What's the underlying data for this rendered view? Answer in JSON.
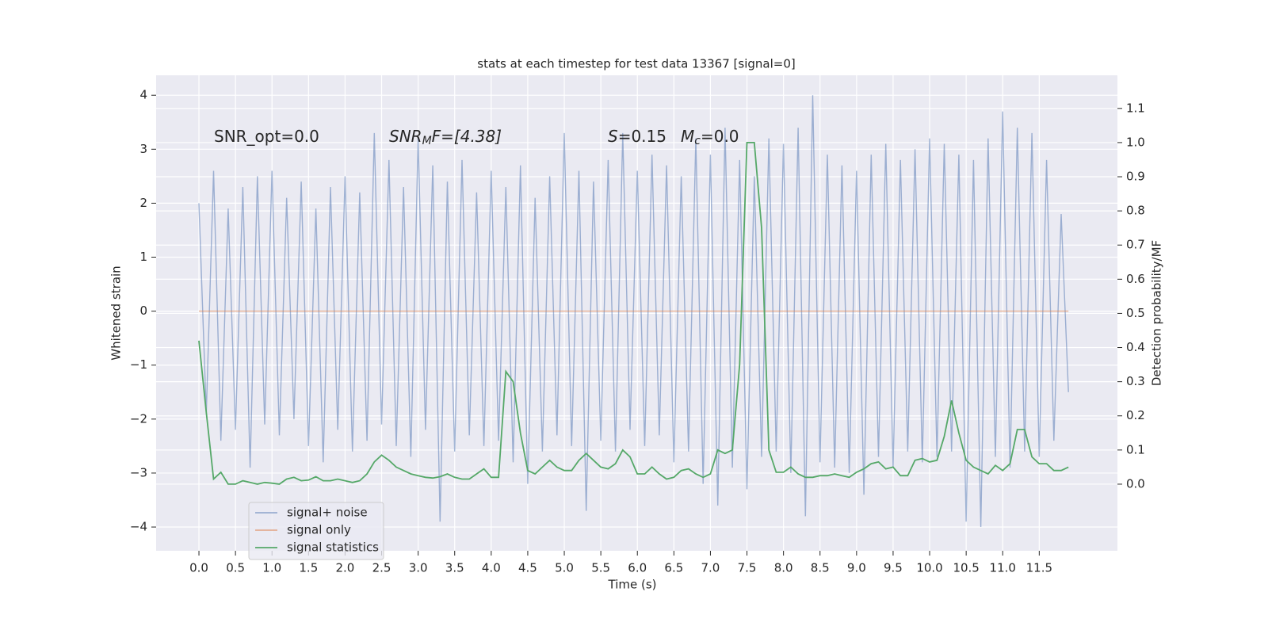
{
  "chart_data": {
    "type": "line",
    "title": "stats at each timestep for test data 13367 [signal=0]",
    "xlabel": "Time (s)",
    "ylabel": "Whitened strain",
    "y2label": "Detection probability/MF",
    "annotations": [
      {
        "text": "SNR_opt=0.0"
      },
      {
        "text": "SNR",
        "sub": "M",
        "tail": "F=[4.38]",
        "italic": true
      },
      {
        "text": "S",
        "tail": "=0.15",
        "italic": true
      },
      {
        "text": "M",
        "sub": "c",
        "tail": "=0.0",
        "italic": true
      }
    ],
    "x": [
      0.0,
      0.1,
      0.2,
      0.3,
      0.4,
      0.5,
      0.6,
      0.7,
      0.8,
      0.9,
      1.0,
      1.1,
      1.2,
      1.3,
      1.4,
      1.5,
      1.6,
      1.7,
      1.8,
      1.9,
      2.0,
      2.1,
      2.2,
      2.3,
      2.4,
      2.5,
      2.6,
      2.7,
      2.8,
      2.9,
      3.0,
      3.1,
      3.2,
      3.3,
      3.4,
      3.5,
      3.6,
      3.7,
      3.8,
      3.9,
      4.0,
      4.1,
      4.2,
      4.3,
      4.4,
      4.5,
      4.6,
      4.7,
      4.8,
      4.9,
      5.0,
      5.1,
      5.2,
      5.3,
      5.4,
      5.5,
      5.6,
      5.7,
      5.8,
      5.9,
      6.0,
      6.1,
      6.2,
      6.3,
      6.4,
      6.5,
      6.6,
      6.7,
      6.8,
      6.9,
      7.0,
      7.1,
      7.2,
      7.3,
      7.4,
      7.5,
      7.6,
      7.7,
      7.8,
      7.9,
      8.0,
      8.1,
      8.2,
      8.3,
      8.4,
      8.5,
      8.6,
      8.7,
      8.8,
      8.9,
      9.0,
      9.1,
      9.2,
      9.3,
      9.4,
      9.5,
      9.6,
      9.7,
      9.8,
      9.9,
      10.0,
      10.1,
      10.2,
      10.3,
      10.4,
      10.5,
      10.6,
      10.7,
      10.8,
      10.9,
      11.0,
      11.1,
      11.2,
      11.3,
      11.4,
      11.5,
      11.6,
      11.7,
      11.8,
      11.9
    ],
    "series": [
      {
        "name": "signal+ noise",
        "color": "#4c72b0",
        "opacity": 0.5,
        "values": [
          2.0,
          -1.9,
          2.6,
          -2.4,
          1.9,
          -2.2,
          2.3,
          -2.9,
          2.5,
          -2.1,
          2.6,
          -2.3,
          2.1,
          -2.0,
          2.4,
          -2.5,
          1.9,
          -2.8,
          2.3,
          -2.2,
          2.5,
          -2.6,
          2.2,
          -2.4,
          3.3,
          -2.1,
          2.8,
          -2.5,
          2.3,
          -2.7,
          3.2,
          -2.2,
          2.7,
          -3.9,
          2.4,
          -2.6,
          2.8,
          -2.3,
          2.2,
          -2.5,
          2.6,
          -2.4,
          2.3,
          -2.8,
          2.7,
          -3.2,
          2.1,
          -2.6,
          2.5,
          -2.3,
          3.3,
          -2.5,
          2.6,
          -3.7,
          2.4,
          -2.4,
          2.8,
          -2.6,
          3.3,
          -2.2,
          2.6,
          -2.5,
          2.9,
          -2.3,
          2.7,
          -2.8,
          2.5,
          -2.6,
          3.2,
          -3.2,
          2.9,
          -3.6,
          3.4,
          -2.9,
          2.8,
          -3.3,
          2.5,
          -2.7,
          3.2,
          -2.6,
          3.1,
          -3.0,
          3.4,
          -3.8,
          4.0,
          -2.8,
          2.9,
          -2.9,
          2.7,
          -3.0,
          2.6,
          -3.4,
          2.9,
          -2.7,
          3.1,
          -2.9,
          2.8,
          -2.6,
          3.0,
          -2.8,
          3.2,
          -2.7,
          3.1,
          -2.6,
          2.9,
          -3.9,
          2.8,
          -4.0,
          3.2,
          -2.7,
          3.7,
          -2.9,
          3.4,
          -2.6,
          3.3,
          -2.7,
          2.8,
          -2.4,
          1.8,
          -1.5
        ]
      },
      {
        "name": "signal only",
        "color": "#dd8452",
        "opacity": 0.6,
        "values": [
          0,
          0,
          0,
          0,
          0,
          0,
          0,
          0,
          0,
          0,
          0,
          0,
          0,
          0,
          0,
          0,
          0,
          0,
          0,
          0,
          0,
          0,
          0,
          0,
          0,
          0,
          0,
          0,
          0,
          0,
          0,
          0,
          0,
          0,
          0,
          0,
          0,
          0,
          0,
          0,
          0,
          0,
          0,
          0,
          0,
          0,
          0,
          0,
          0,
          0,
          0,
          0,
          0,
          0,
          0,
          0,
          0,
          0,
          0,
          0,
          0,
          0,
          0,
          0,
          0,
          0,
          0,
          0,
          0,
          0,
          0,
          0,
          0,
          0,
          0,
          0,
          0,
          0,
          0,
          0,
          0,
          0,
          0,
          0,
          0,
          0,
          0,
          0,
          0,
          0,
          0,
          0,
          0,
          0,
          0,
          0,
          0,
          0,
          0,
          0,
          0,
          0,
          0,
          0,
          0,
          0,
          0,
          0,
          0,
          0,
          0,
          0,
          0,
          0,
          0,
          0,
          0,
          0,
          0,
          0
        ]
      },
      {
        "name": "signal statistics",
        "color": "#55a868",
        "opacity": 1,
        "axis": "y2",
        "values": [
          0.42,
          0.21,
          0.015,
          0.035,
          0.0,
          0.0,
          0.01,
          0.005,
          0.0,
          0.005,
          0.003,
          0.0,
          0.015,
          0.02,
          0.01,
          0.012,
          0.022,
          0.01,
          0.01,
          0.015,
          0.01,
          0.005,
          0.01,
          0.03,
          0.065,
          0.085,
          0.07,
          0.05,
          0.04,
          0.03,
          0.025,
          0.02,
          0.018,
          0.022,
          0.03,
          0.02,
          0.015,
          0.015,
          0.03,
          0.045,
          0.02,
          0.02,
          0.33,
          0.3,
          0.15,
          0.04,
          0.03,
          0.05,
          0.07,
          0.05,
          0.04,
          0.04,
          0.07,
          0.09,
          0.07,
          0.05,
          0.045,
          0.06,
          0.1,
          0.08,
          0.03,
          0.03,
          0.05,
          0.03,
          0.015,
          0.02,
          0.04,
          0.045,
          0.03,
          0.02,
          0.03,
          0.1,
          0.09,
          0.1,
          0.35,
          1.0,
          1.0,
          0.75,
          0.1,
          0.035,
          0.035,
          0.05,
          0.03,
          0.02,
          0.02,
          0.025,
          0.025,
          0.03,
          0.025,
          0.02,
          0.035,
          0.045,
          0.06,
          0.065,
          0.045,
          0.05,
          0.025,
          0.025,
          0.07,
          0.075,
          0.065,
          0.07,
          0.14,
          0.245,
          0.15,
          0.07,
          0.05,
          0.04,
          0.03,
          0.055,
          0.04,
          0.06,
          0.16,
          0.16,
          0.08,
          0.06,
          0.06,
          0.04,
          0.04,
          0.05
        ]
      }
    ],
    "xlim": [
      -0.586,
      12.57
    ],
    "ylim": [
      -4.44,
      4.37
    ],
    "y2lim": [
      -0.195,
      1.197
    ],
    "xticks": [
      {
        "value": 0,
        "label": "0.0"
      },
      0.5,
      {
        "value": 1,
        "label": "1.0"
      },
      1.5,
      {
        "value": 2,
        "label": "2.0"
      },
      2.5,
      {
        "value": 3,
        "label": "3.0"
      },
      3.5,
      {
        "value": 4,
        "label": "4.0"
      },
      4.5,
      {
        "value": 5,
        "label": "5.0"
      },
      5.5,
      {
        "value": 6,
        "label": "6.0"
      },
      6.5,
      {
        "value": 7,
        "label": "7.0"
      },
      7.5,
      {
        "value": 8,
        "label": "8.0"
      },
      8.5,
      {
        "value": 9,
        "label": "9.0"
      },
      9.5,
      {
        "value": 10,
        "label": "10.0"
      },
      10.5,
      {
        "value": 11,
        "label": "11.0"
      },
      11.5
    ],
    "yticks": [
      {
        "value": -4,
        "label": "−4"
      },
      {
        "value": -3,
        "label": "−3"
      },
      {
        "value": -2,
        "label": "−2"
      },
      {
        "value": -1,
        "label": "−1"
      },
      0,
      1,
      2,
      3,
      4
    ],
    "y2ticks": [
      {
        "value": 0,
        "label": "0.0"
      },
      0.1,
      0.2,
      0.3,
      0.4,
      0.5,
      0.6,
      0.7,
      0.8,
      0.9,
      {
        "value": 1,
        "label": "1.0"
      },
      1.1
    ],
    "grid": true,
    "legend_loc": "lower left"
  }
}
